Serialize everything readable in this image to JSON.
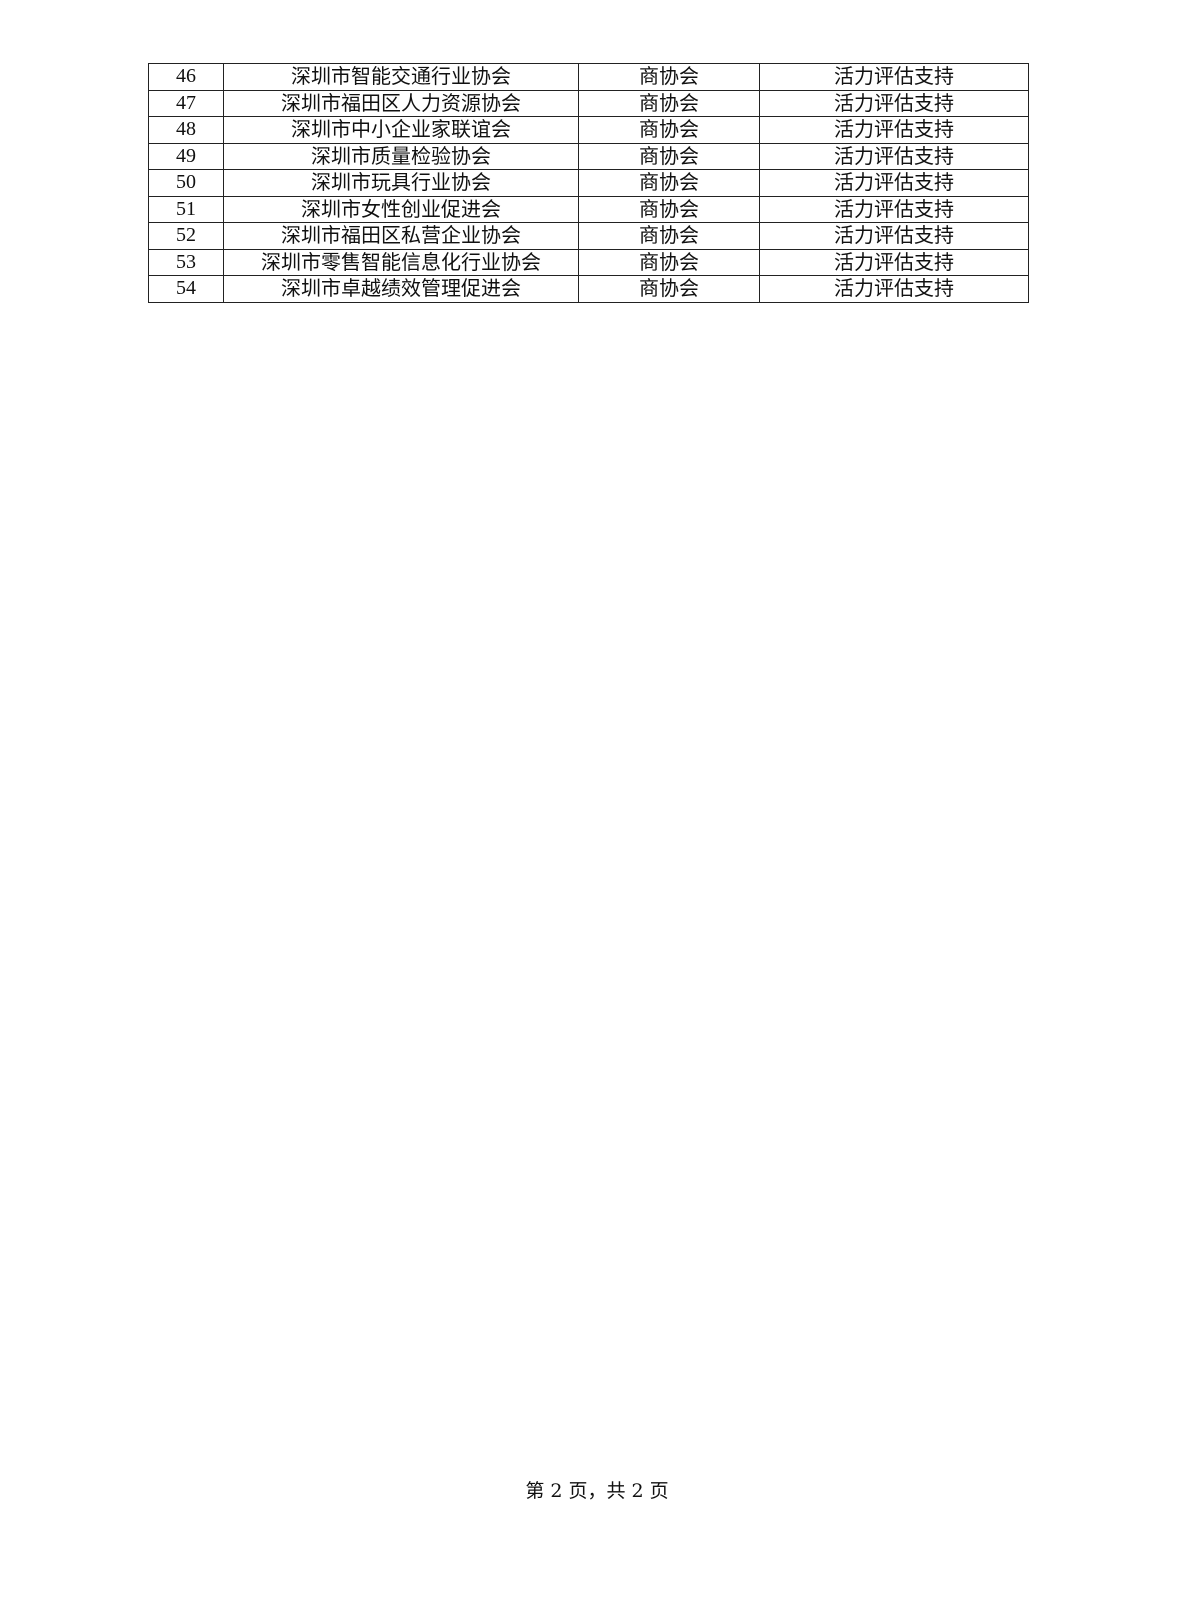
{
  "table": {
    "rows": [
      {
        "no": "46",
        "name": "深圳市智能交通行业协会",
        "type": "商协会",
        "support": "活力评估支持"
      },
      {
        "no": "47",
        "name": "深圳市福田区人力资源协会",
        "type": "商协会",
        "support": "活力评估支持"
      },
      {
        "no": "48",
        "name": "深圳市中小企业家联谊会",
        "type": "商协会",
        "support": "活力评估支持"
      },
      {
        "no": "49",
        "name": "深圳市质量检验协会",
        "type": "商协会",
        "support": "活力评估支持"
      },
      {
        "no": "50",
        "name": "深圳市玩具行业协会",
        "type": "商协会",
        "support": "活力评估支持"
      },
      {
        "no": "51",
        "name": "深圳市女性创业促进会",
        "type": "商协会",
        "support": "活力评估支持"
      },
      {
        "no": "52",
        "name": "深圳市福田区私营企业协会",
        "type": "商协会",
        "support": "活力评估支持"
      },
      {
        "no": "53",
        "name": "深圳市零售智能信息化行业协会",
        "type": "商协会",
        "support": "活力评估支持"
      },
      {
        "no": "54",
        "name": "深圳市卓越绩效管理促进会",
        "type": "商协会",
        "support": "活力评估支持"
      }
    ]
  },
  "footer": {
    "page_label": "第 2 页，共 2 页"
  }
}
